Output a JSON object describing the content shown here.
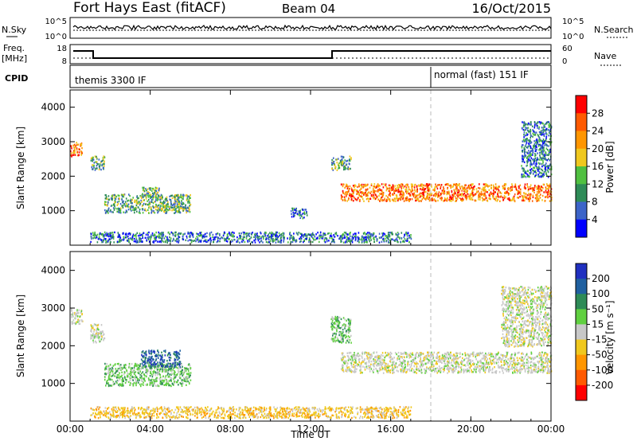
{
  "header": {
    "station": "Fort Hays East (fitACF)",
    "beam": "Beam 04",
    "date": "16/Oct/2015"
  },
  "strips": {
    "nsky_label": "N.Sky",
    "nsky_ticks": [
      "10^5",
      "10^0"
    ],
    "nsearch_label": "N.Search",
    "nsearch_ticks": [
      "10^5",
      "10^0"
    ],
    "freq_label": "Freq.",
    "freq_unit": "[MHz]",
    "freq_ticks": [
      "18",
      "8"
    ],
    "nave_label": "Nave",
    "nave_ticks": [
      "60",
      "0"
    ],
    "cpid_label": "CPID",
    "cpid_segments": [
      "themis 3300 IF",
      "normal (fast) 151 IF"
    ]
  },
  "chart_data": [
    {
      "type": "heatmap",
      "title": "",
      "xlabel": "",
      "ylabel": "Slant Range [km]",
      "xlim": [
        0,
        24
      ],
      "ylim": [
        0,
        4500
      ],
      "x_ticks": [
        "00:00",
        "04:00",
        "08:00",
        "12:00",
        "16:00",
        "20:00",
        "00:00"
      ],
      "y_ticks": [
        1000,
        2000,
        3000,
        4000
      ],
      "colorbar": {
        "label": "Power [dB]",
        "ticks": [
          "28",
          "24",
          "20",
          "16",
          "12",
          "8",
          "4"
        ],
        "colors": [
          "#ff0000",
          "#ff5a00",
          "#ff9600",
          "#f0c81e",
          "#50c040",
          "#2e8b57",
          "#3c64c8",
          "#0000ff"
        ]
      },
      "regions": [
        {
          "t0": 0.0,
          "t1": 0.6,
          "r0": 2600,
          "r1": 3000,
          "level": "high"
        },
        {
          "t0": 1.0,
          "t1": 1.7,
          "r0": 2200,
          "r1": 2600,
          "level": "mid"
        },
        {
          "t0": 1.7,
          "t1": 6.0,
          "r0": 950,
          "r1": 1500,
          "level": "mid"
        },
        {
          "t0": 3.5,
          "t1": 4.5,
          "r0": 1400,
          "r1": 1700,
          "level": "mid"
        },
        {
          "t0": 11.0,
          "t1": 11.8,
          "r0": 800,
          "r1": 1100,
          "level": "low"
        },
        {
          "t0": 13.0,
          "t1": 14.0,
          "r0": 2200,
          "r1": 2600,
          "level": "mid"
        },
        {
          "t0": 13.5,
          "t1": 24.0,
          "r0": 1300,
          "r1": 1800,
          "level": "high"
        },
        {
          "t0": 22.5,
          "t1": 24.0,
          "r0": 2000,
          "r1": 3600,
          "level": "low"
        },
        {
          "t0": 1.0,
          "t1": 17.0,
          "r0": 100,
          "r1": 400,
          "level": "low"
        }
      ]
    },
    {
      "type": "heatmap",
      "title": "",
      "xlabel": "Time UT",
      "ylabel": "Slant Range [km]",
      "xlim": [
        0,
        24
      ],
      "ylim": [
        0,
        4500
      ],
      "x_ticks": [
        "00:00",
        "04:00",
        "08:00",
        "12:00",
        "16:00",
        "20:00",
        "00:00"
      ],
      "y_ticks": [
        1000,
        2000,
        3000,
        4000
      ],
      "colorbar": {
        "label": "Velocity [m s⁻¹]",
        "ticks": [
          "200",
          "100",
          "50",
          "15",
          "-15",
          "-50",
          "-100",
          "-200"
        ],
        "colors": [
          "#2030c0",
          "#2060a0",
          "#2e8b57",
          "#60d040",
          "#c8c8c8",
          "#f0c81e",
          "#ff9600",
          "#ff5a00",
          "#ff0000"
        ]
      },
      "regions": [
        {
          "t0": 0.0,
          "t1": 0.6,
          "r0": 2600,
          "r1": 3000,
          "level": "ground"
        },
        {
          "t0": 1.0,
          "t1": 1.7,
          "r0": 2100,
          "r1": 2600,
          "level": "ground"
        },
        {
          "t0": 1.7,
          "t1": 6.0,
          "r0": 950,
          "r1": 1550,
          "level": "positive"
        },
        {
          "t0": 3.5,
          "t1": 5.5,
          "r0": 1450,
          "r1": 1900,
          "level": "strong"
        },
        {
          "t0": 13.0,
          "t1": 14.0,
          "r0": 2100,
          "r1": 2800,
          "level": "positive"
        },
        {
          "t0": 13.5,
          "t1": 24.0,
          "r0": 1300,
          "r1": 1850,
          "level": "ground"
        },
        {
          "t0": 21.5,
          "t1": 24.0,
          "r0": 2000,
          "r1": 3600,
          "level": "ground"
        },
        {
          "t0": 1.0,
          "t1": 17.0,
          "r0": 100,
          "r1": 400,
          "level": "negative"
        }
      ]
    }
  ]
}
